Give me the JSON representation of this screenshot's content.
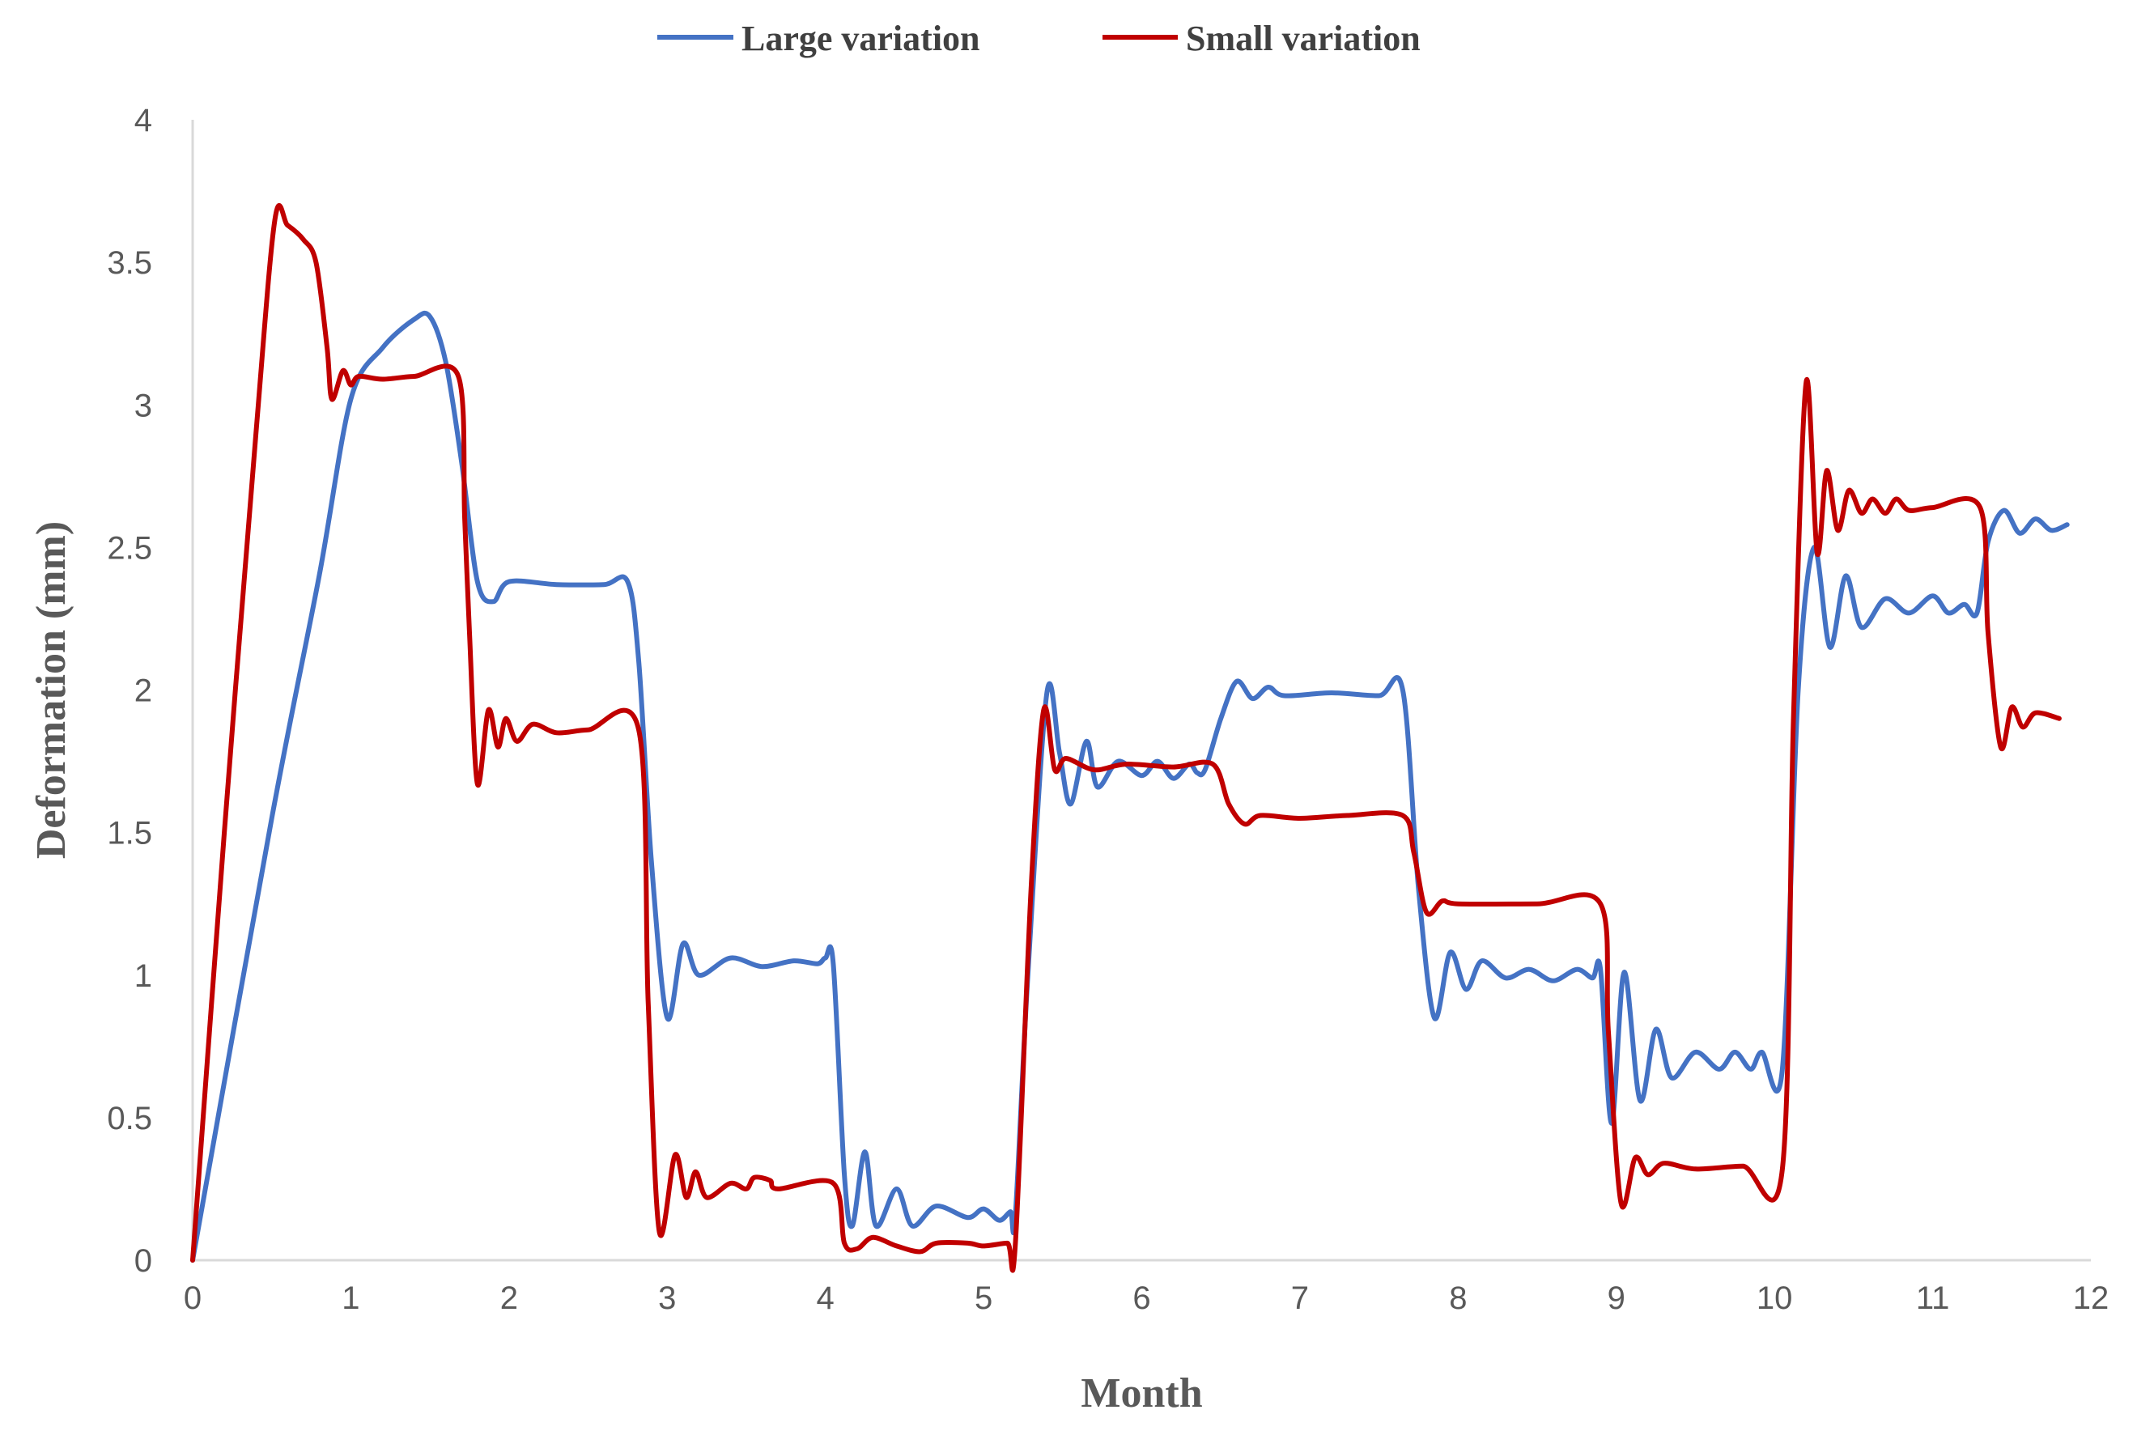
{
  "chart_data": {
    "type": "line",
    "xlabel": "Month",
    "ylabel": "Deformation (mm)",
    "xlim": [
      0,
      12
    ],
    "ylim": [
      0,
      4
    ],
    "x_ticks": [
      "0",
      "1",
      "2",
      "3",
      "4",
      "5",
      "6",
      "7",
      "8",
      "9",
      "10",
      "11",
      "12"
    ],
    "y_ticks": [
      "0",
      "0.5",
      "1",
      "1.5",
      "2",
      "2.5",
      "3",
      "3.5",
      "4"
    ],
    "grid": false,
    "legend_position": "top-center",
    "series": [
      {
        "name": "Large variation",
        "color": "#4472C4",
        "points": [
          [
            0,
            0
          ],
          [
            0.5,
            1.55
          ],
          [
            0.8,
            2.4
          ],
          [
            1.0,
            3.02
          ],
          [
            1.2,
            3.2
          ],
          [
            1.4,
            3.3
          ],
          [
            1.5,
            3.31
          ],
          [
            1.6,
            3.15
          ],
          [
            1.7,
            2.8
          ],
          [
            1.8,
            2.38
          ],
          [
            1.9,
            2.31
          ],
          [
            2.0,
            2.38
          ],
          [
            2.3,
            2.37
          ],
          [
            2.6,
            2.37
          ],
          [
            2.75,
            2.38
          ],
          [
            2.82,
            2.1
          ],
          [
            2.9,
            1.4
          ],
          [
            3.0,
            0.85
          ],
          [
            3.1,
            1.11
          ],
          [
            3.2,
            1.0
          ],
          [
            3.4,
            1.06
          ],
          [
            3.6,
            1.03
          ],
          [
            3.8,
            1.05
          ],
          [
            3.95,
            1.04
          ],
          [
            4.0,
            1.06
          ],
          [
            4.05,
            1.04
          ],
          [
            4.12,
            0.3
          ],
          [
            4.17,
            0.12
          ],
          [
            4.25,
            0.38
          ],
          [
            4.32,
            0.12
          ],
          [
            4.45,
            0.25
          ],
          [
            4.55,
            0.12
          ],
          [
            4.7,
            0.19
          ],
          [
            4.9,
            0.15
          ],
          [
            5.0,
            0.18
          ],
          [
            5.1,
            0.14
          ],
          [
            5.17,
            0.17
          ],
          [
            5.2,
            0.15
          ],
          [
            5.28,
            1.0
          ],
          [
            5.4,
            1.99
          ],
          [
            5.48,
            1.78
          ],
          [
            5.55,
            1.6
          ],
          [
            5.65,
            1.82
          ],
          [
            5.72,
            1.66
          ],
          [
            5.85,
            1.75
          ],
          [
            6.0,
            1.7
          ],
          [
            6.1,
            1.75
          ],
          [
            6.2,
            1.69
          ],
          [
            6.3,
            1.74
          ],
          [
            6.35,
            1.71
          ],
          [
            6.4,
            1.72
          ],
          [
            6.5,
            1.9
          ],
          [
            6.6,
            2.03
          ],
          [
            6.7,
            1.97
          ],
          [
            6.8,
            2.01
          ],
          [
            6.9,
            1.98
          ],
          [
            7.2,
            1.99
          ],
          [
            7.5,
            1.98
          ],
          [
            7.65,
            2.0
          ],
          [
            7.75,
            1.3
          ],
          [
            7.85,
            0.85
          ],
          [
            7.95,
            1.08
          ],
          [
            8.05,
            0.95
          ],
          [
            8.15,
            1.05
          ],
          [
            8.3,
            0.99
          ],
          [
            8.45,
            1.02
          ],
          [
            8.6,
            0.98
          ],
          [
            8.75,
            1.02
          ],
          [
            8.85,
            0.99
          ],
          [
            8.9,
            1.02
          ],
          [
            8.97,
            0.48
          ],
          [
            9.05,
            1.01
          ],
          [
            9.15,
            0.56
          ],
          [
            9.25,
            0.81
          ],
          [
            9.35,
            0.64
          ],
          [
            9.5,
            0.73
          ],
          [
            9.65,
            0.67
          ],
          [
            9.75,
            0.73
          ],
          [
            9.85,
            0.67
          ],
          [
            9.92,
            0.73
          ],
          [
            10.05,
            0.67
          ],
          [
            10.15,
            2.0
          ],
          [
            10.25,
            2.5
          ],
          [
            10.35,
            2.15
          ],
          [
            10.45,
            2.4
          ],
          [
            10.55,
            2.22
          ],
          [
            10.7,
            2.32
          ],
          [
            10.85,
            2.27
          ],
          [
            11.0,
            2.33
          ],
          [
            11.1,
            2.27
          ],
          [
            11.2,
            2.3
          ],
          [
            11.28,
            2.27
          ],
          [
            11.35,
            2.52
          ],
          [
            11.45,
            2.63
          ],
          [
            11.55,
            2.55
          ],
          [
            11.65,
            2.6
          ],
          [
            11.75,
            2.56
          ],
          [
            11.85,
            2.58
          ]
        ]
      },
      {
        "name": "Small variation",
        "color": "#C00000",
        "points": [
          [
            0,
            0
          ],
          [
            0.2,
            1.5
          ],
          [
            0.4,
            2.9
          ],
          [
            0.52,
            3.65
          ],
          [
            0.6,
            3.63
          ],
          [
            0.7,
            3.58
          ],
          [
            0.78,
            3.5
          ],
          [
            0.85,
            3.2
          ],
          [
            0.88,
            3.02
          ],
          [
            0.95,
            3.12
          ],
          [
            1.0,
            3.07
          ],
          [
            1.05,
            3.1
          ],
          [
            1.2,
            3.09
          ],
          [
            1.4,
            3.1
          ],
          [
            1.68,
            3.1
          ],
          [
            1.72,
            2.6
          ],
          [
            1.75,
            2.2
          ],
          [
            1.8,
            1.67
          ],
          [
            1.87,
            1.93
          ],
          [
            1.93,
            1.8
          ],
          [
            1.98,
            1.9
          ],
          [
            2.05,
            1.82
          ],
          [
            2.15,
            1.88
          ],
          [
            2.3,
            1.85
          ],
          [
            2.5,
            1.86
          ],
          [
            2.82,
            1.86
          ],
          [
            2.88,
            0.9
          ],
          [
            2.95,
            0.1
          ],
          [
            3.05,
            0.37
          ],
          [
            3.12,
            0.22
          ],
          [
            3.18,
            0.31
          ],
          [
            3.25,
            0.22
          ],
          [
            3.4,
            0.27
          ],
          [
            3.5,
            0.25
          ],
          [
            3.55,
            0.29
          ],
          [
            3.65,
            0.28
          ],
          [
            3.7,
            0.25
          ],
          [
            4.05,
            0.27
          ],
          [
            4.12,
            0.06
          ],
          [
            4.2,
            0.04
          ],
          [
            4.3,
            0.08
          ],
          [
            4.45,
            0.05
          ],
          [
            4.6,
            0.03
          ],
          [
            4.7,
            0.06
          ],
          [
            4.9,
            0.06
          ],
          [
            5.0,
            0.05
          ],
          [
            5.15,
            0.06
          ],
          [
            5.2,
            0.05
          ],
          [
            5.3,
            1.3
          ],
          [
            5.38,
            1.93
          ],
          [
            5.45,
            1.72
          ],
          [
            5.52,
            1.76
          ],
          [
            5.7,
            1.72
          ],
          [
            5.9,
            1.74
          ],
          [
            6.2,
            1.73
          ],
          [
            6.45,
            1.74
          ],
          [
            6.55,
            1.6
          ],
          [
            6.65,
            1.53
          ],
          [
            6.75,
            1.56
          ],
          [
            7.0,
            1.55
          ],
          [
            7.3,
            1.56
          ],
          [
            7.65,
            1.56
          ],
          [
            7.72,
            1.43
          ],
          [
            7.8,
            1.22
          ],
          [
            7.9,
            1.26
          ],
          [
            8.0,
            1.25
          ],
          [
            8.5,
            1.25
          ],
          [
            8.9,
            1.25
          ],
          [
            8.95,
            0.8
          ],
          [
            9.03,
            0.2
          ],
          [
            9.12,
            0.36
          ],
          [
            9.2,
            0.3
          ],
          [
            9.3,
            0.34
          ],
          [
            9.5,
            0.32
          ],
          [
            9.8,
            0.33
          ],
          [
            10.05,
            0.32
          ],
          [
            10.12,
            1.9
          ],
          [
            10.2,
            3.08
          ],
          [
            10.27,
            2.48
          ],
          [
            10.33,
            2.77
          ],
          [
            10.4,
            2.56
          ],
          [
            10.47,
            2.7
          ],
          [
            10.55,
            2.62
          ],
          [
            10.62,
            2.67
          ],
          [
            10.7,
            2.62
          ],
          [
            10.77,
            2.67
          ],
          [
            10.85,
            2.63
          ],
          [
            11.0,
            2.64
          ],
          [
            11.3,
            2.64
          ],
          [
            11.35,
            2.2
          ],
          [
            11.43,
            1.8
          ],
          [
            11.5,
            1.94
          ],
          [
            11.57,
            1.87
          ],
          [
            11.65,
            1.92
          ],
          [
            11.8,
            1.9
          ]
        ]
      }
    ]
  }
}
